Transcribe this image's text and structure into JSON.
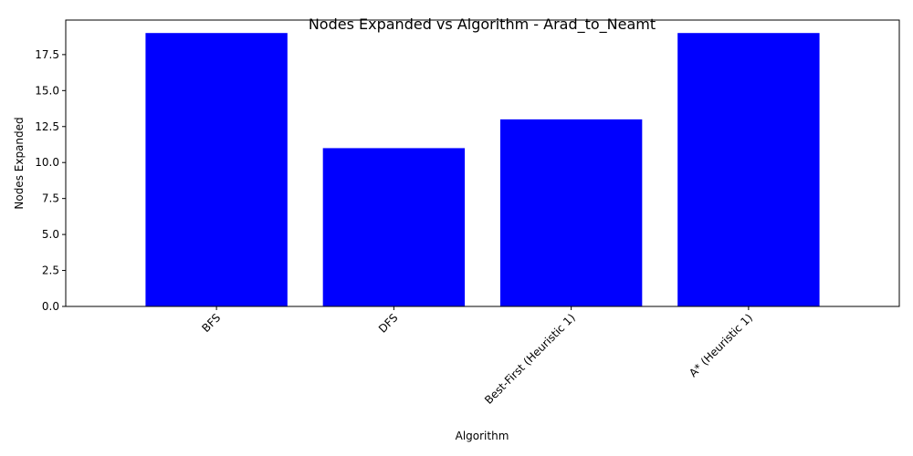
{
  "chart_data": {
    "type": "bar",
    "title": "Nodes Expanded vs Algorithm - Arad_to_Neamt",
    "xlabel": "Algorithm",
    "ylabel": "Nodes Expanded",
    "categories": [
      "BFS",
      "DFS",
      "Best-First (Heuristic 1)",
      "A* (Heuristic 1)"
    ],
    "values": [
      19,
      11,
      13,
      19
    ],
    "ylim": [
      0,
      19.9
    ],
    "yticks": [
      "0.0",
      "2.5",
      "5.0",
      "7.5",
      "10.0",
      "12.5",
      "15.0",
      "17.5"
    ],
    "bar_color": "#0000ff",
    "grid": false,
    "legend": "none"
  }
}
